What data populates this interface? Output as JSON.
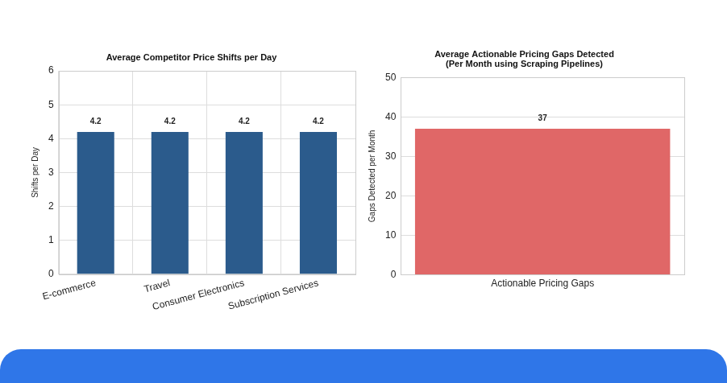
{
  "chart_data": [
    {
      "type": "bar",
      "title": "Average Competitor Price Shifts per Day",
      "categories": [
        "E-commerce",
        "Travel",
        "Consumer Electronics",
        "Subscription Services"
      ],
      "values": [
        4.2,
        4.2,
        4.2,
        4.2
      ],
      "color": "#2b5b8c",
      "ylabel": "Shifts per Day",
      "ylim": [
        0,
        6
      ],
      "yticks": [
        0,
        1,
        2,
        3,
        4,
        5,
        6
      ],
      "grid": true,
      "data_labels": true
    },
    {
      "type": "bar",
      "title": [
        "Average Actionable Pricing Gaps Detected",
        "(Per Month using Scraping Pipelines)"
      ],
      "categories": [
        "Actionable Pricing Gaps"
      ],
      "values": [
        37
      ],
      "color": "#e06767",
      "ylabel": "Gaps Detected per Month",
      "ylim": [
        0,
        50
      ],
      "yticks": [
        0,
        10,
        20,
        30,
        40,
        50
      ],
      "grid": true,
      "data_labels": true
    }
  ]
}
